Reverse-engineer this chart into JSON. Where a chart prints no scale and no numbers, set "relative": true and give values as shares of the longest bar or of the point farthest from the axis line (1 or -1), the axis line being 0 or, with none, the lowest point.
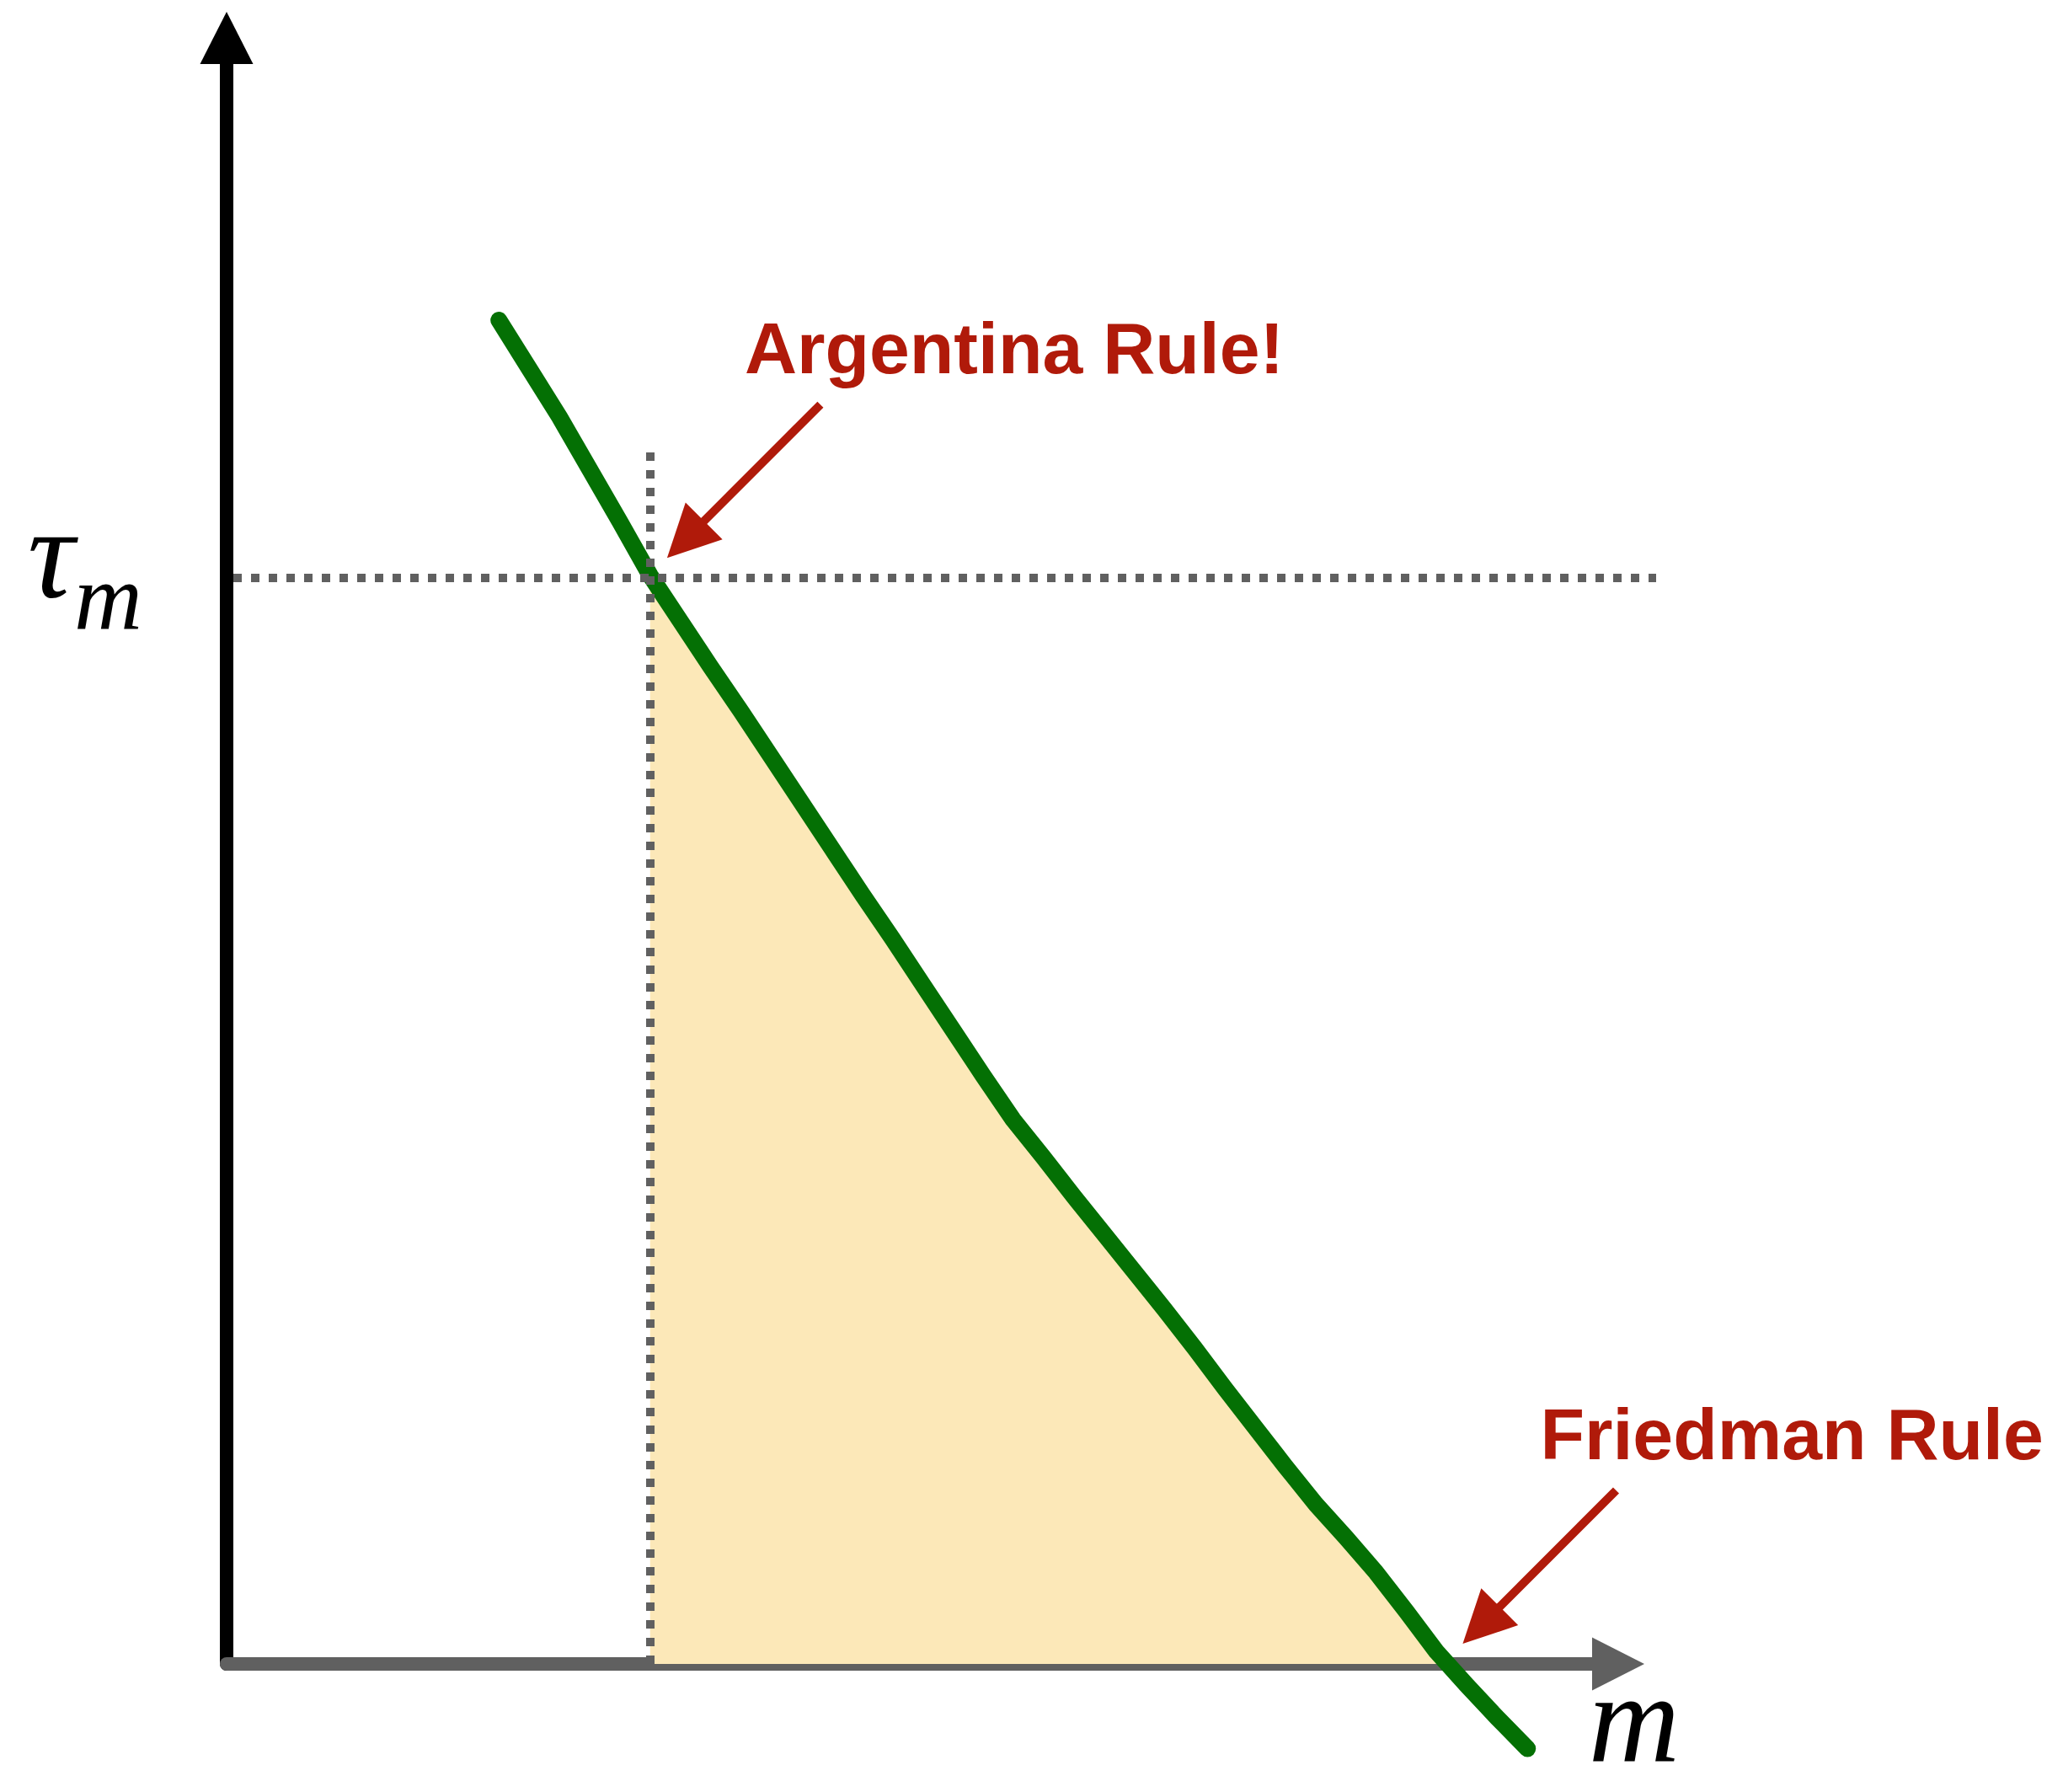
{
  "chart_data": {
    "type": "line",
    "relative": true,
    "xlabel": "m",
    "categories": [
      null,
      null,
      null,
      null,
      null,
      null,
      null,
      null,
      null,
      null,
      null,
      null,
      null,
      null,
      null,
      null,
      null,
      null,
      null,
      null,
      null,
      null,
      null,
      null,
      null,
      null,
      null,
      null,
      null,
      null,
      null,
      null,
      null,
      null,
      null,
      null,
      null,
      null,
      null,
      null,
      null,
      null,
      null,
      null,
      null,
      null,
      null
    ],
    "series": [
      {
        "type": "area",
        "color": "#fce8b8",
        "values": [
          null,
          null,
          null,
          null,
          null,
          null,
          null,
          null,
          null,
          null,
          null,
          null,
          null,
          null,
          0.81,
          0.776,
          0.742,
          0.709,
          0.675,
          0.641,
          0.607,
          0.573,
          0.54,
          0.506,
          0.472,
          0.438,
          0.405,
          0.377,
          0.348,
          0.32,
          0.292,
          0.264,
          0.235,
          0.205,
          0.176,
          0.147,
          0.119,
          0.094,
          0.068,
          0.039,
          0.009,
          null,
          null,
          null,
          null,
          null,
          null
        ]
      },
      {
        "type": "line",
        "color": "#047004",
        "values": [
          null,
          null,
          null,
          null,
          null,
          null,
          null,
          null,
          null,
          1,
          0.964,
          0.928,
          0.889,
          0.85,
          0.81,
          0.776,
          0.742,
          0.709,
          0.675,
          0.641,
          0.607,
          0.573,
          0.54,
          0.506,
          0.472,
          0.438,
          0.405,
          0.377,
          0.348,
          0.32,
          0.292,
          0.264,
          0.235,
          0.205,
          0.176,
          0.147,
          0.119,
          0.094,
          0.068,
          0.039,
          0.009,
          -0.016,
          -0.04,
          -0.063,
          null,
          null,
          null
        ]
      }
    ],
    "ref_lines": [
      {
        "axis": "y",
        "value": 0.808,
        "label": "τ$_{m}$",
        "color": "#606060",
        "line_style": "dotted"
      }
    ],
    "annotations": [
      {
        "text": "Argentina Rule!",
        "y": 0.808
      },
      "Friedman Rule"
    ]
  }
}
